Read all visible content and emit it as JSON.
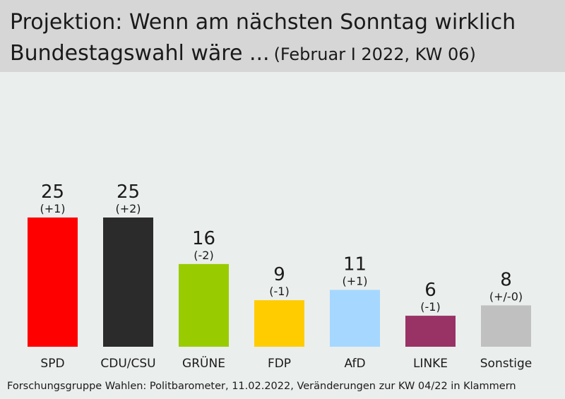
{
  "title": "Projektion: Wenn am nächsten Sonntag wirklich",
  "title_line2": "Bundestagswahl wäre ...",
  "subtitle": "(Februar I 2022, KW 06)",
  "source": "Forschungsgruppe  Wahlen: Politbarometer, 11.02.2022,  Veränderungen  zur  KW 04/22  in  Klammern",
  "colors": {
    "background": "#eaeeec",
    "header": "#d6d6d6"
  },
  "chart_data": {
    "type": "bar",
    "categories": [
      "SPD",
      "CDU/CSU",
      "GRÜNE",
      "FDP",
      "AfD",
      "LINKE",
      "Sonstige"
    ],
    "values": [
      25,
      25,
      16,
      9,
      11,
      6,
      8
    ],
    "changes": [
      "(+1)",
      "(+2)",
      "(-2)",
      "(-1)",
      "(+1)",
      "(-1)",
      "(+/-0)"
    ],
    "colors": [
      "#ff0000",
      "#2b2b2b",
      "#99cc00",
      "#ffcc00",
      "#a6d8ff",
      "#993366",
      "#c0c0c0"
    ],
    "ylim": [
      0,
      25
    ],
    "grid": false,
    "xlabel": "",
    "ylabel": ""
  }
}
